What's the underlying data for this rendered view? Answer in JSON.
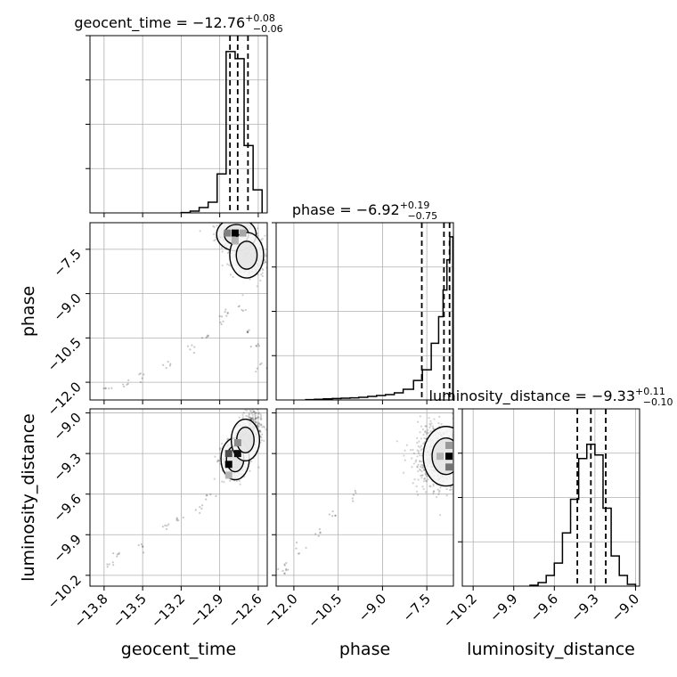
{
  "chart_data": {
    "type": "corner",
    "parameters": [
      "geocent_time",
      "phase",
      "luminosity_distance"
    ],
    "axis_labels": {
      "geocent_time": "geocent_time",
      "phase": "phase",
      "luminosity_distance": "luminosity_distance"
    },
    "ranges": {
      "geocent_time": [
        -13.91,
        -12.53
      ],
      "phase": [
        -12.6,
        -6.6
      ],
      "luminosity_distance": [
        -10.28,
        -8.97
      ]
    },
    "ticks": {
      "geocent_time": [
        -13.8,
        -13.5,
        -13.2,
        -12.9,
        -12.6
      ],
      "phase": [
        -12.0,
        -10.5,
        -9.0,
        -7.5
      ],
      "luminosity_distance": [
        -10.2,
        -9.9,
        -9.6,
        -9.3,
        -9.0
      ]
    },
    "tick_labels": {
      "geocent_time": [
        "−13.8",
        "−13.5",
        "−13.2",
        "−12.9",
        "−12.6"
      ],
      "phase": [
        "−12.0",
        "−10.5",
        "−9.0",
        "−7.5"
      ],
      "luminosity_distance": [
        "−10.2",
        "−9.9",
        "−9.6",
        "−9.3",
        "−9.0"
      ]
    },
    "titles": [
      {
        "parameter": "geocent_time",
        "prefix": "geocent_time = ",
        "median": "−12.76",
        "plus": "+0.08",
        "minus": "−0.06"
      },
      {
        "parameter": "phase",
        "prefix": "phase = ",
        "median": "−6.92",
        "plus": "+0.19",
        "minus": "−0.75"
      },
      {
        "parameter": "luminosity_distance",
        "prefix": "luminosity_distance = ",
        "median": "−9.33",
        "plus": "+0.11",
        "minus": "−0.10"
      }
    ],
    "quantiles": {
      "geocent_time": [
        -12.82,
        -12.76,
        -12.68
      ],
      "phase": [
        -7.67,
        -6.92,
        -6.73
      ],
      "luminosity_distance": [
        -9.43,
        -9.33,
        -9.22
      ]
    },
    "histograms": {
      "geocent_time": {
        "edges": [
          -13.2,
          -13.13,
          -13.06,
          -12.99,
          -12.92,
          -12.85,
          -12.78,
          -12.71,
          -12.64,
          -12.57
        ],
        "counts": [
          0.002,
          0.01,
          0.03,
          0.06,
          0.22,
          0.91,
          0.87,
          0.38,
          0.13
        ]
      },
      "phase": {
        "edges": [
          -11.6,
          -11.3,
          -11.0,
          -10.7,
          -10.4,
          -10.1,
          -9.8,
          -9.5,
          -9.2,
          -8.9,
          -8.6,
          -8.3,
          -7.95,
          -7.65,
          -7.35,
          -7.1,
          -6.95,
          -6.82,
          -6.72,
          -6.62
        ],
        "counts": [
          0.002,
          0.004,
          0.006,
          0.008,
          0.01,
          0.012,
          0.015,
          0.02,
          0.025,
          0.03,
          0.04,
          0.06,
          0.11,
          0.17,
          0.32,
          0.47,
          0.62,
          0.79,
          0.92
        ]
      },
      "luminosity_distance": {
        "edges": [
          -9.78,
          -9.72,
          -9.66,
          -9.6,
          -9.54,
          -9.48,
          -9.42,
          -9.36,
          -9.3,
          -9.24,
          -9.18,
          -9.12,
          -9.06,
          -9.0
        ],
        "counts": [
          0.005,
          0.02,
          0.06,
          0.13,
          0.3,
          0.49,
          0.72,
          0.8,
          0.74,
          0.44,
          0.17,
          0.06,
          0.01
        ]
      }
    },
    "pair_densities": [
      {
        "x": "geocent_time",
        "y": "phase",
        "peaks": [
          {
            "x": -12.77,
            "y": -7.0,
            "sx": 0.07,
            "sy": 0.25,
            "weight": 1.0
          },
          {
            "x": -12.69,
            "y": -7.7,
            "sx": 0.06,
            "sy": 0.35,
            "weight": 0.45
          },
          {
            "x": -12.63,
            "y": -7.9,
            "sx": 0.05,
            "sy": 0.25,
            "weight": 0.3
          }
        ],
        "contour_levels": [
          0.25,
          0.6
        ],
        "cells": [
          {
            "x": -12.78,
            "y": -6.95,
            "value": 1.0
          },
          {
            "x": -12.84,
            "y": -6.95,
            "value": 0.5
          },
          {
            "x": -12.72,
            "y": -6.95,
            "value": 0.35
          },
          {
            "x": -12.78,
            "y": -7.2,
            "value": 0.3
          }
        ]
      },
      {
        "x": "geocent_time",
        "y": "luminosity_distance",
        "peaks": [
          {
            "x": -12.78,
            "y": -9.34,
            "sx": 0.05,
            "sy": 0.07,
            "weight": 1.0
          },
          {
            "x": -12.7,
            "y": -9.2,
            "sx": 0.05,
            "sy": 0.07,
            "weight": 0.7
          },
          {
            "x": -12.64,
            "y": -9.07,
            "sx": 0.04,
            "sy": 0.06,
            "weight": 0.35
          }
        ],
        "contour_levels": [
          0.25,
          0.6
        ],
        "cells": [
          {
            "x": -12.83,
            "y": -9.38,
            "value": 1.0
          },
          {
            "x": -12.83,
            "y": -9.3,
            "value": 0.7
          },
          {
            "x": -12.76,
            "y": -9.3,
            "value": 0.95
          },
          {
            "x": -12.76,
            "y": -9.22,
            "value": 0.45
          },
          {
            "x": -12.83,
            "y": -9.46,
            "value": 0.3
          }
        ]
      },
      {
        "x": "phase",
        "y": "luminosity_distance",
        "peaks": [
          {
            "x": -6.85,
            "y": -9.32,
            "sx": 0.35,
            "sy": 0.1,
            "weight": 1.0
          },
          {
            "x": -7.4,
            "y": -9.32,
            "sx": 0.4,
            "sy": 0.14,
            "weight": 0.3
          }
        ],
        "contour_levels": [
          0.25,
          0.6
        ],
        "cells": [
          {
            "x": -6.75,
            "y": -9.32,
            "value": 1.0
          },
          {
            "x": -6.75,
            "y": -9.4,
            "value": 0.55
          },
          {
            "x": -6.75,
            "y": -9.24,
            "value": 0.4
          },
          {
            "x": -7.05,
            "y": -9.32,
            "value": 0.3
          }
        ]
      }
    ],
    "tail_points": [
      {
        "pair": "geocent_time|phase",
        "points": [
          [
            -13.78,
            -12.2
          ],
          [
            -13.62,
            -12.05
          ],
          [
            -13.5,
            -11.8
          ],
          [
            -13.3,
            -11.4
          ],
          [
            -13.1,
            -10.9
          ],
          [
            -13.0,
            -10.5
          ],
          [
            -12.9,
            -9.9
          ],
          [
            -12.85,
            -9.6
          ],
          [
            -12.72,
            -9.5
          ],
          [
            -12.68,
            -10.2
          ],
          [
            -12.62,
            -10.8
          ],
          [
            -12.58,
            -11.5
          ]
        ]
      },
      {
        "pair": "geocent_time|luminosity_distance",
        "points": [
          [
            -13.75,
            -10.13
          ],
          [
            -13.72,
            -10.05
          ],
          [
            -13.52,
            -9.98
          ],
          [
            -13.3,
            -9.85
          ],
          [
            -13.2,
            -9.78
          ],
          [
            -13.05,
            -9.7
          ],
          [
            -12.98,
            -9.62
          ]
        ]
      },
      {
        "pair": "phase|luminosity_distance",
        "points": [
          [
            -12.4,
            -10.18
          ],
          [
            -12.3,
            -10.12
          ],
          [
            -11.8,
            -10.0
          ],
          [
            -11.2,
            -9.88
          ],
          [
            -10.6,
            -9.75
          ],
          [
            -10.0,
            -9.62
          ]
        ]
      }
    ],
    "hist_style": {
      "line_color": "#000000",
      "quantile_style": "dashed"
    },
    "grid": true
  }
}
